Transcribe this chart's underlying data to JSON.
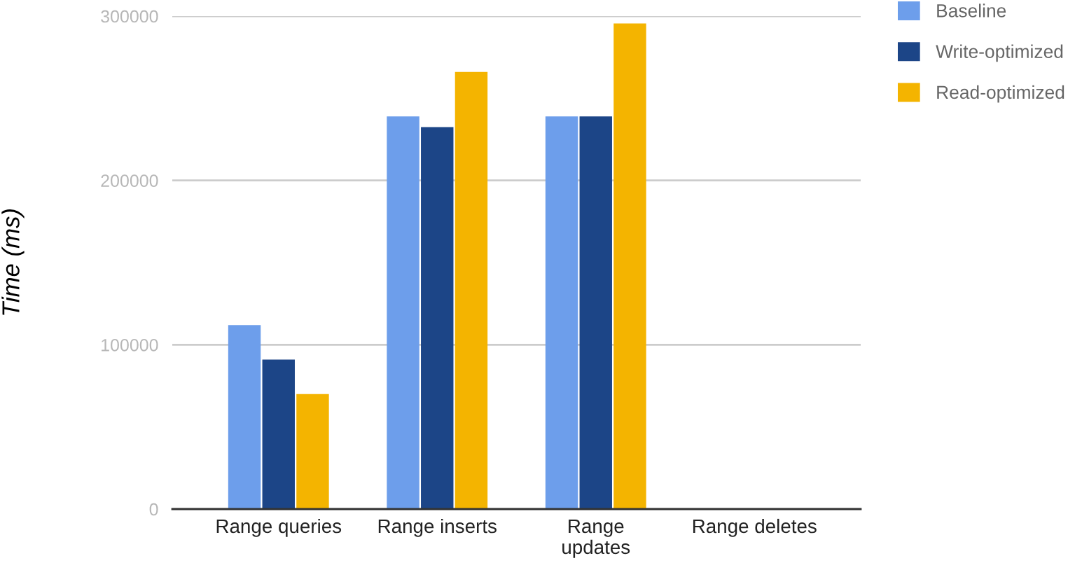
{
  "chart_data": {
    "type": "bar",
    "ylabel": "Time (ms)",
    "categories": [
      "Range queries",
      "Range inserts",
      "Range\nupdates",
      "Range deletes"
    ],
    "series": [
      {
        "name": "Baseline",
        "color": "#6d9eeb",
        "values": [
          112000,
          239000,
          239000,
          null
        ]
      },
      {
        "name": "Write-optimized",
        "color": "#1c4587",
        "values": [
          91000,
          232500,
          239000,
          null
        ]
      },
      {
        "name": "Read-optimized",
        "color": "#f4b400",
        "values": [
          70000,
          266000,
          295500,
          null
        ]
      }
    ],
    "ylim": [
      0,
      300000
    ],
    "yticks": [
      0,
      100000,
      200000,
      300000
    ],
    "grid": "y",
    "legend": "top right"
  }
}
